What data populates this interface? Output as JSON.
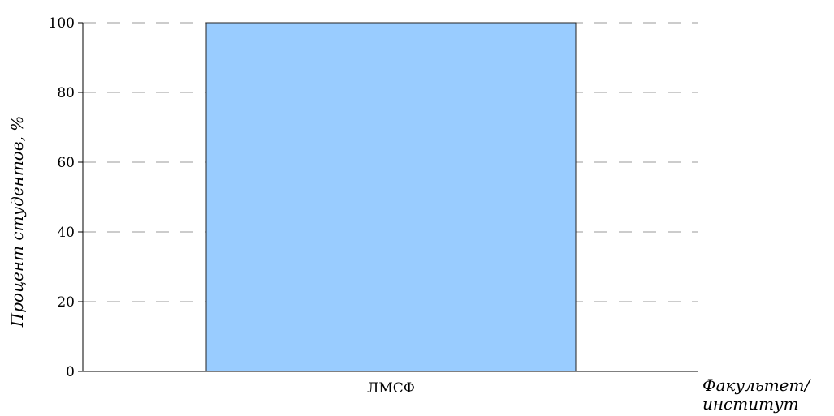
{
  "chart_data": {
    "type": "bar",
    "categories": [
      "ЛМСФ"
    ],
    "values": [
      100
    ],
    "ylabel": "Процент студентов, %",
    "xlabel_lines": [
      "Факультет/",
      "институт"
    ],
    "ylim": [
      0,
      100
    ],
    "yticks": [
      0,
      20,
      40,
      60,
      80,
      100
    ],
    "grid": true,
    "colors": {
      "bar_fill": "#99ccff",
      "bar_edge": "#222222",
      "grid": "#9a9a9a"
    }
  }
}
